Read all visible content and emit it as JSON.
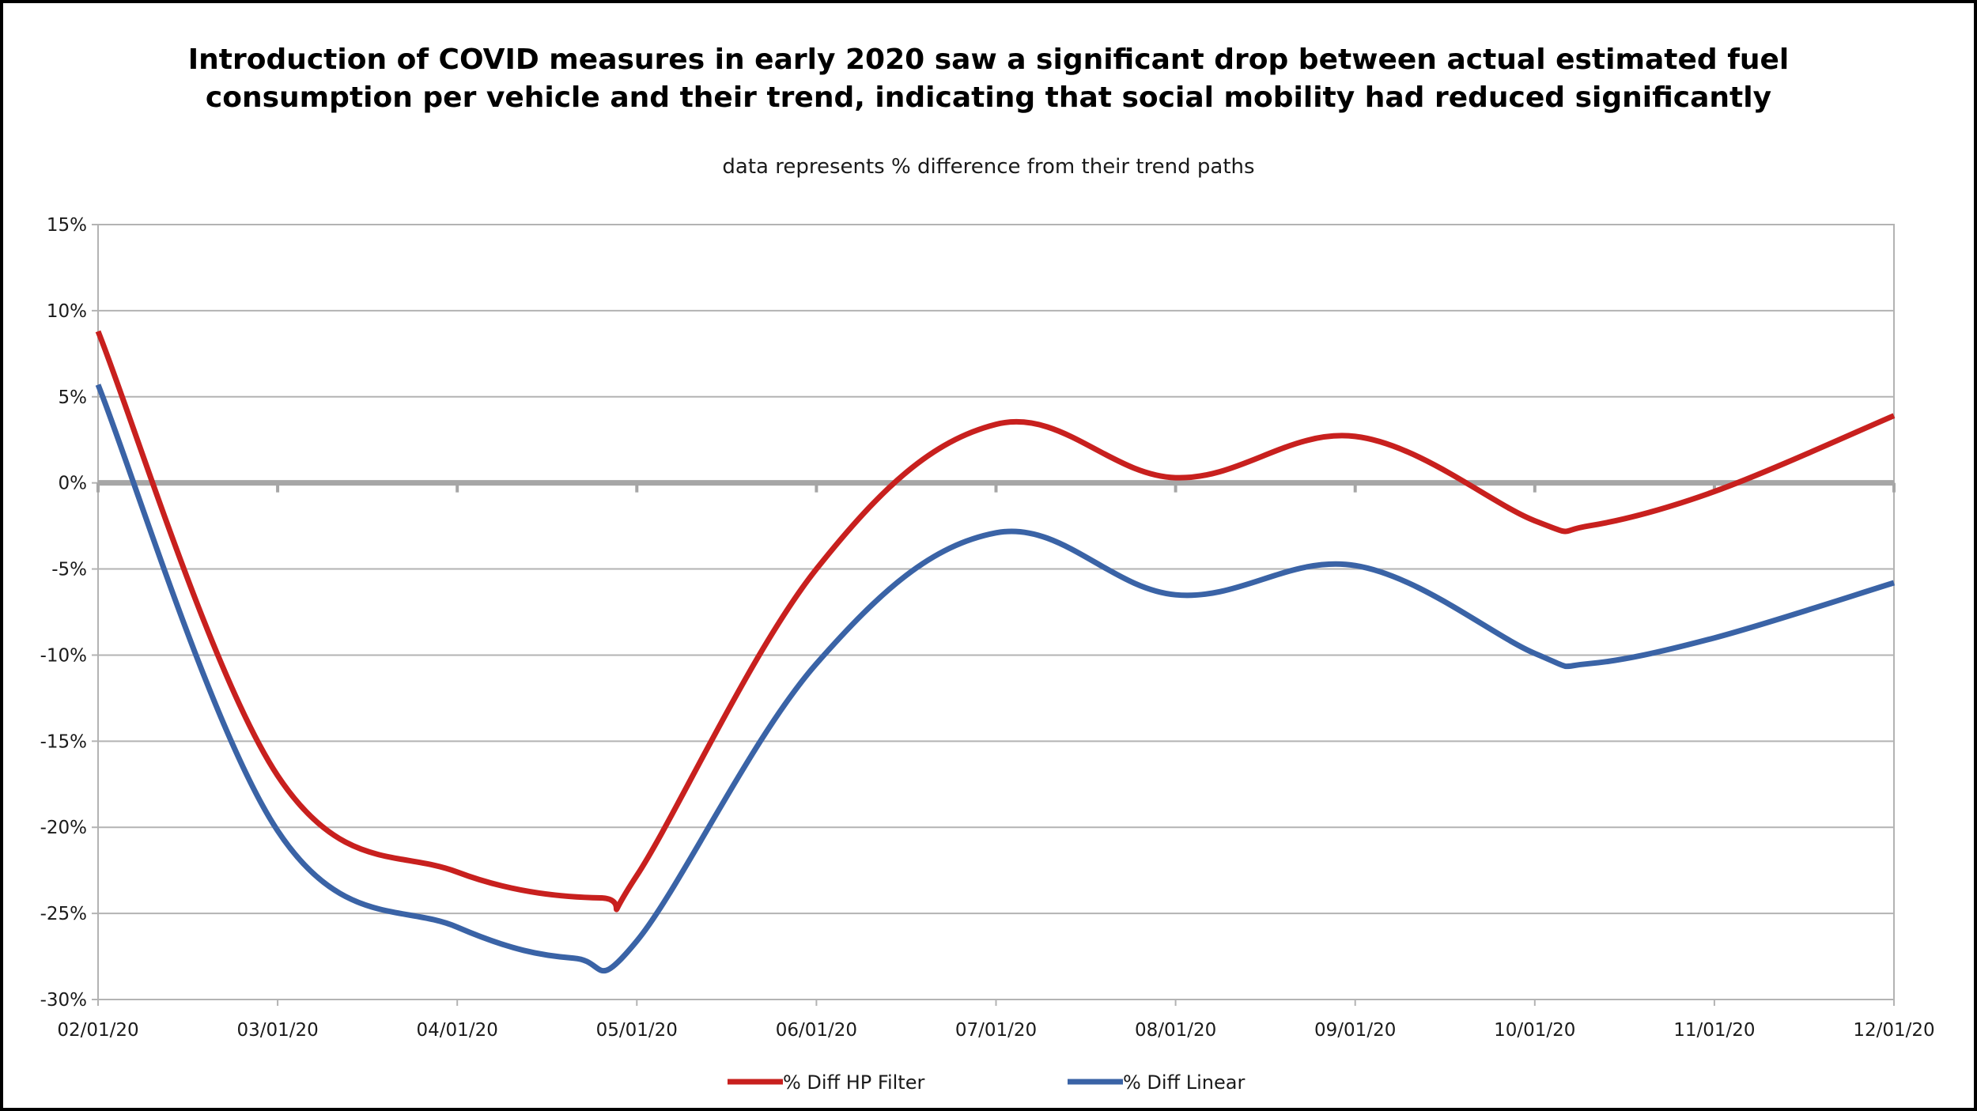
{
  "chart_data": {
    "type": "line",
    "title": "Introduction of COVID measures in early 2020 saw a significant drop between actual estimated fuel consumption per vehicle and their trend, indicating that social mobility had reduced significantly",
    "title_lines": [
      "Introduction of COVID measures in early 2020 saw a significant drop between actual estimated fuel",
      "consumption per vehicle and their trend, indicating that social mobility had reduced significantly"
    ],
    "subtitle": "data represents % difference from their trend paths",
    "xlabel": "",
    "ylabel": "",
    "categories": [
      "02/01/20",
      "03/01/20",
      "04/01/20",
      "05/01/20",
      "06/01/20",
      "07/01/20",
      "08/01/20",
      "09/01/20",
      "10/01/20",
      "11/01/20",
      "12/01/20"
    ],
    "y_tick_values": [
      15,
      10,
      5,
      0,
      -5,
      -10,
      -15,
      -20,
      -25,
      -30
    ],
    "y_tick_labels": [
      "15%",
      "10%",
      "5%",
      "0%",
      "-5%",
      "-10%",
      "-15%",
      "-20%",
      "-25%",
      "-30%"
    ],
    "ylim": [
      -30,
      15
    ],
    "grid": true,
    "legend_position": "bottom",
    "series": [
      {
        "name": "% Diff HP Filter",
        "color": "#c8201e",
        "x": [
          0,
          1,
          2,
          2.8,
          3,
          4,
          5,
          6,
          7,
          8,
          8.3,
          9,
          10
        ],
        "values": [
          8.8,
          -17.0,
          -22.6,
          -24.1,
          -22.8,
          -5.0,
          3.4,
          0.3,
          2.7,
          -2.2,
          -2.5,
          -0.5,
          3.9
        ]
      },
      {
        "name": "% Diff Linear",
        "color": "#3a63a6",
        "x": [
          0,
          1,
          2,
          2.65,
          3,
          4,
          5,
          6,
          7,
          8,
          8.3,
          9,
          10
        ],
        "values": [
          5.7,
          -20.2,
          -25.8,
          -27.6,
          -26.6,
          -10.5,
          -2.9,
          -6.5,
          -4.8,
          -9.9,
          -10.5,
          -9.0,
          -5.8
        ]
      }
    ]
  }
}
